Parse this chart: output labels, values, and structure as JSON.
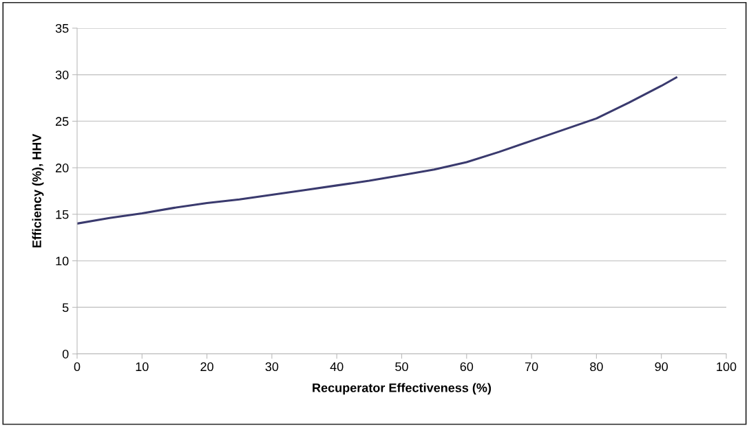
{
  "chart_data": {
    "type": "line",
    "xlabel": "Recuperator Effectiveness (%)",
    "ylabel": "Efficiency (%), HHV",
    "x": [
      0,
      5,
      10,
      15,
      20,
      25,
      30,
      35,
      40,
      45,
      50,
      55,
      60,
      65,
      70,
      75,
      80,
      85,
      90,
      92.3
    ],
    "series": [
      {
        "color": "#3a3a6e",
        "values": [
          14.0,
          14.6,
          15.1,
          15.7,
          16.2,
          16.6,
          17.1,
          17.6,
          18.1,
          18.6,
          19.2,
          19.8,
          20.6,
          21.7,
          22.9,
          24.1,
          25.3,
          27.0,
          28.8,
          29.7
        ]
      }
    ],
    "xlim": [
      0,
      100
    ],
    "xticks": [
      0,
      10,
      20,
      30,
      40,
      50,
      60,
      70,
      80,
      90,
      100
    ],
    "ylim": [
      0,
      35
    ],
    "yticks": [
      0,
      5,
      10,
      15,
      20,
      25,
      30,
      35
    ],
    "grid": "y",
    "marker": "none",
    "line_style": "solid",
    "legend": false
  }
}
